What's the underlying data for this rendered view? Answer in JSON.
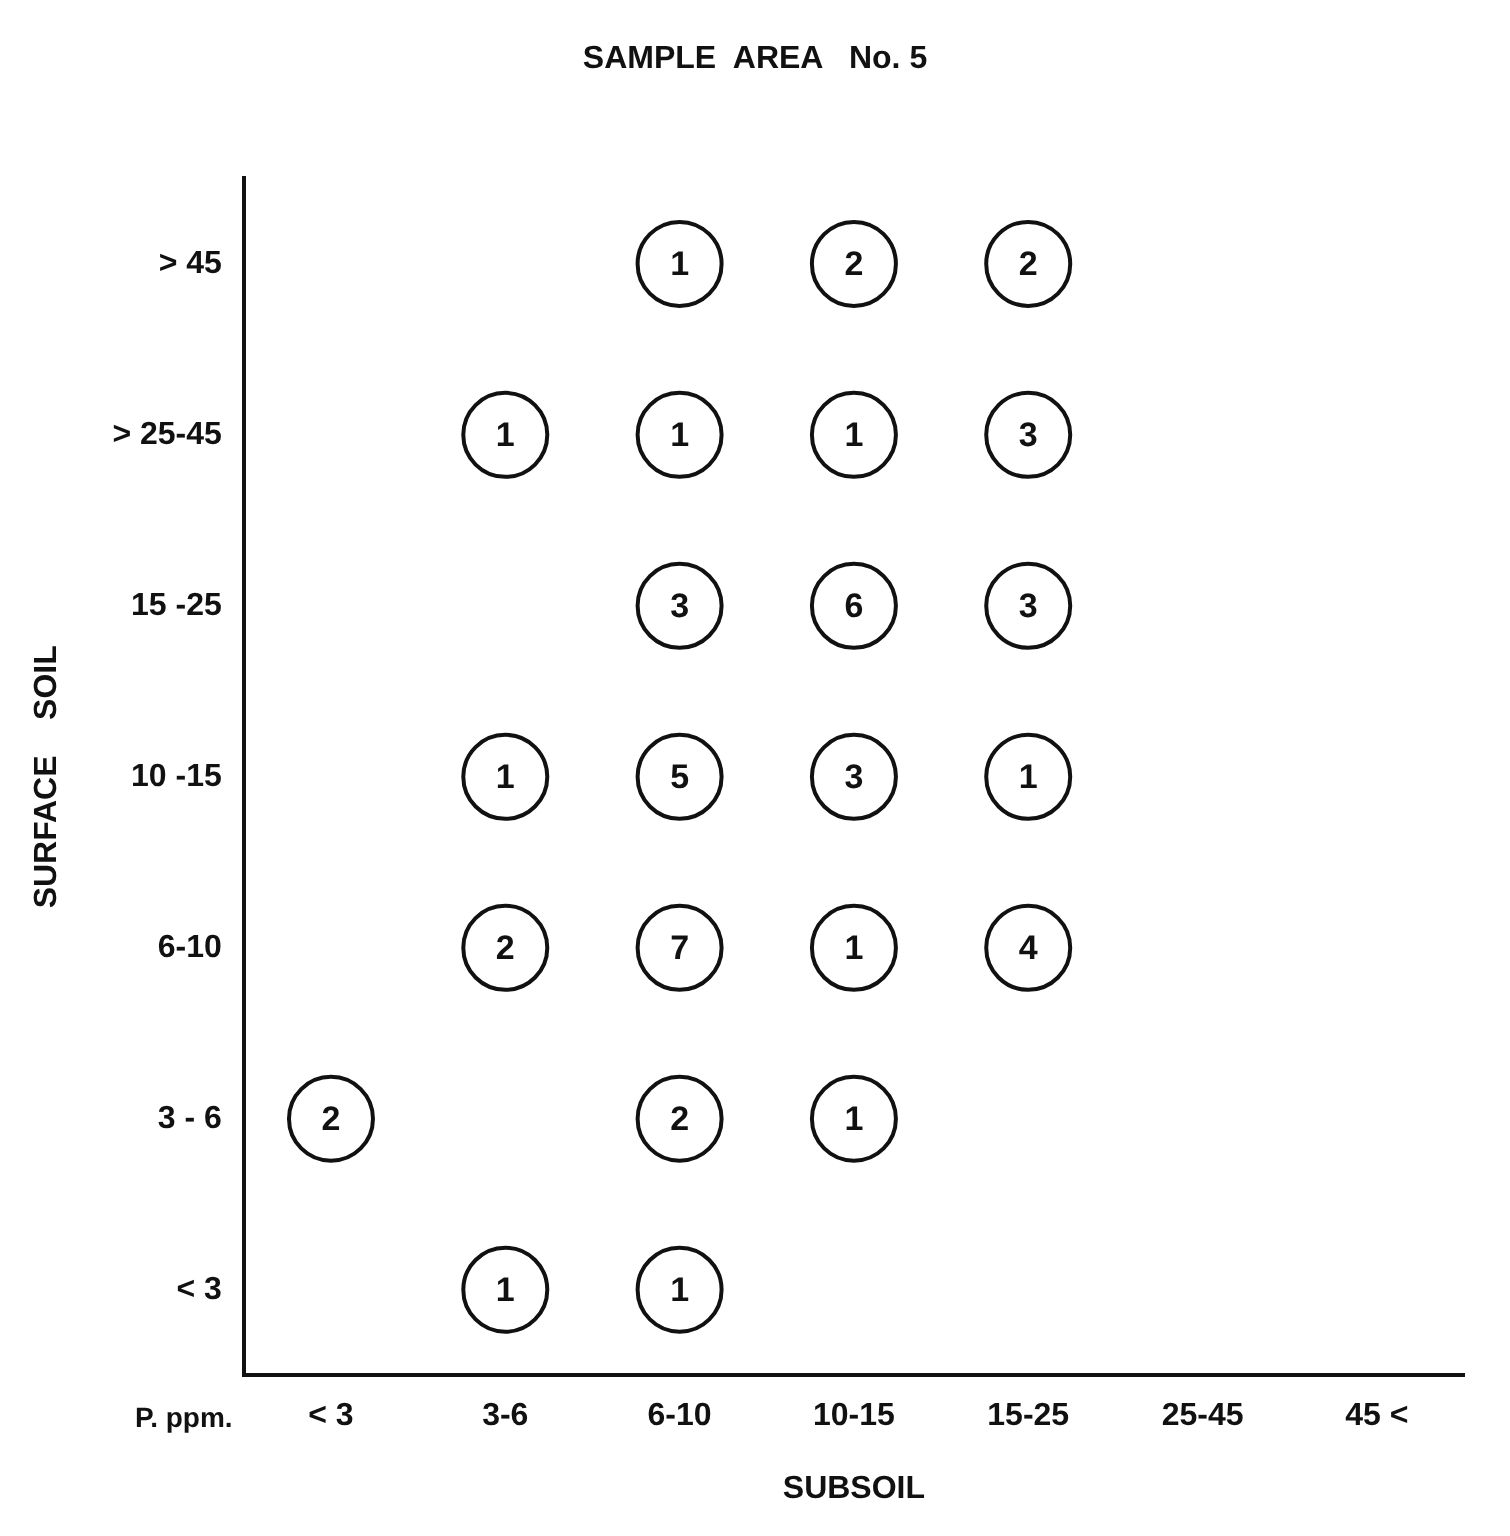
{
  "chart_data": {
    "type": "heatmap",
    "title": "SAMPLE  AREA   No. 5",
    "xlabel": "SUBSOIL",
    "ylabel": "SURFACE    SOIL",
    "categories": [
      "< 3",
      "3-6",
      "6-10",
      "10-15",
      "15-25",
      "25-45",
      "45 <"
    ],
    "y_categories": [
      "> 45",
      "> 25-45",
      "15 -25",
      "10 -15",
      "6-10",
      "3 - 6",
      "< 3"
    ],
    "cells": [
      [
        null,
        null,
        1,
        2,
        2,
        null,
        null
      ],
      [
        null,
        1,
        1,
        1,
        3,
        null,
        null
      ],
      [
        null,
        null,
        3,
        6,
        3,
        null,
        null
      ],
      [
        null,
        1,
        5,
        3,
        1,
        null,
        null
      ],
      [
        null,
        2,
        7,
        1,
        4,
        null,
        null
      ],
      [
        2,
        null,
        2,
        1,
        null,
        null,
        null
      ],
      [
        null,
        1,
        1,
        null,
        null,
        null,
        null
      ]
    ],
    "data_labels": true,
    "grid": false,
    "legend": false,
    "annotations": [
      "P. ppm."
    ]
  }
}
